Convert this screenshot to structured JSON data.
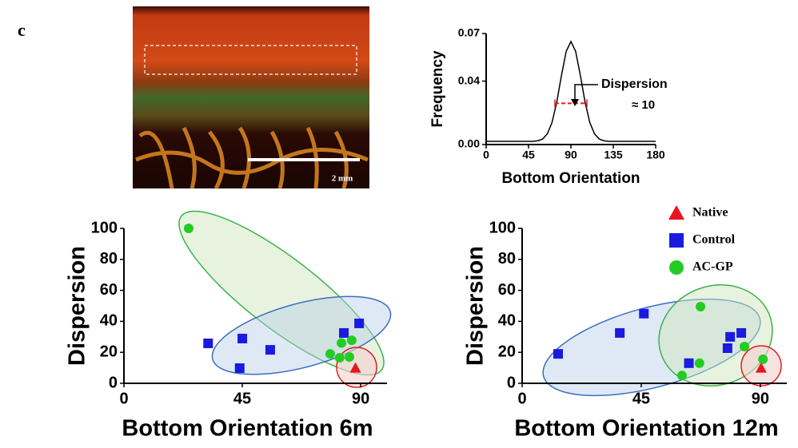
{
  "panel_label": "c",
  "image": {
    "scale_label": "2 mm"
  },
  "chart_data": [
    {
      "type": "line",
      "x_label": "Bottom Orientation",
      "y_label": "Frequency",
      "x": [
        0,
        10,
        20,
        30,
        40,
        50,
        55,
        60,
        65,
        70,
        75,
        80,
        85,
        90,
        95,
        100,
        105,
        110,
        115,
        120,
        125,
        130,
        140,
        150,
        160,
        170,
        180
      ],
      "values": [
        0.002,
        0.002,
        0.002,
        0.002,
        0.002,
        0.002,
        0.0024,
        0.0035,
        0.0068,
        0.014,
        0.0269,
        0.0437,
        0.0588,
        0.065,
        0.0588,
        0.0437,
        0.0269,
        0.014,
        0.0068,
        0.0035,
        0.0024,
        0.002,
        0.002,
        0.002,
        0.002,
        0.002,
        0.002
      ],
      "color": "#000000",
      "xlim": [
        0,
        180
      ],
      "xticks": [
        0,
        45,
        90,
        135,
        180
      ],
      "ylim": [
        0,
        0.07
      ],
      "yticks": [
        {
          "value": 0,
          "label": "0.00"
        },
        0.04,
        0.07
      ],
      "dispersion_range": {
        "x": [
          73,
          107
        ],
        "y": 0.026,
        "color": "#e02020"
      },
      "annotations": [
        "Dispersion",
        "≈ 10"
      ]
    },
    {
      "type": "scatter",
      "x_label": "Bottom Orientation 6m",
      "y_label": "Dispersion",
      "xlim": [
        0,
        100
      ],
      "xticks": [
        0,
        45,
        90
      ],
      "ylim": [
        0,
        100
      ],
      "yticks": [
        0,
        20,
        40,
        60,
        80,
        100
      ],
      "series": [
        {
          "name": "Native",
          "color": "#e8141e",
          "marker": "triangle",
          "x": [
            88
          ],
          "values": [
            10
          ]
        },
        {
          "name": "Control",
          "color": "#1a1ae0",
          "marker": "square",
          "x": [
            32,
            45,
            44,
            55.6,
            83.6,
            89.4
          ],
          "values": [
            25.8,
            28.9,
            9.8,
            21.6,
            32.5,
            38.7
          ]
        },
        {
          "name": "AC-GP",
          "color": "#22cc22",
          "marker": "circle",
          "x": [
            24.6,
            78.4,
            82.7,
            86.6,
            82,
            85.7
          ],
          "values": [
            100,
            19,
            26,
            27.8,
            16.5,
            17
          ]
        }
      ]
    },
    {
      "type": "scatter",
      "x_label": "Bottom Orientation 12m",
      "y_label": "Dispersion",
      "xlim": [
        0,
        100
      ],
      "xticks": [
        0,
        45,
        90
      ],
      "ylim": [
        0,
        100
      ],
      "yticks": [
        0,
        20,
        40,
        60,
        80,
        100
      ],
      "legend": "top-right",
      "series": [
        {
          "name": "Native",
          "color": "#e8141e",
          "marker": "triangle",
          "x": [
            90.3
          ],
          "values": [
            10
          ]
        },
        {
          "name": "Control",
          "color": "#1a1ae0",
          "marker": "square",
          "x": [
            13.6,
            36.9,
            46,
            63,
            77.6,
            78.6,
            82.8
          ],
          "values": [
            19,
            32.5,
            45,
            13,
            22.7,
            30,
            32.5
          ]
        },
        {
          "name": "AC-GP",
          "color": "#22cc22",
          "marker": "circle",
          "x": [
            67.4,
            60.4,
            67,
            84,
            91
          ],
          "values": [
            49.5,
            5,
            13,
            23.7,
            15.5
          ]
        }
      ]
    }
  ]
}
